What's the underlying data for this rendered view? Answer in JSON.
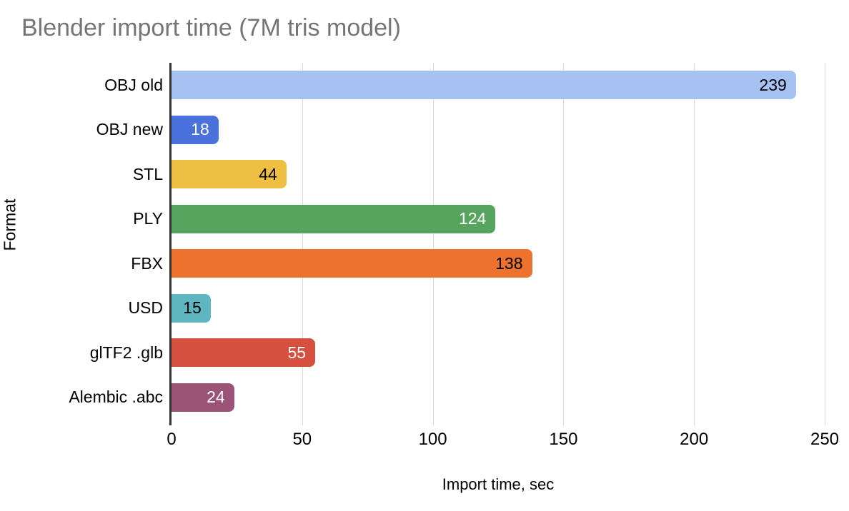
{
  "title": "Blender import time (7M tris model)",
  "chart_data": {
    "type": "bar",
    "orientation": "horizontal",
    "title": "Blender import time (7M tris model)",
    "categories": [
      "OBJ old",
      "OBJ new",
      "STL",
      "PLY",
      "FBX",
      "USD",
      "glTF2 .glb",
      "Alembic .abc"
    ],
    "values": [
      239,
      18,
      44,
      124,
      138,
      15,
      55,
      24
    ],
    "bar_colors": [
      "#a5c2f2",
      "#4b72dc",
      "#efbf44",
      "#57a45f",
      "#ed722e",
      "#5eb6c0",
      "#d5503f",
      "#9b5377"
    ],
    "value_label_colors": [
      "#000000",
      "#ffffff",
      "#000000",
      "#ffffff",
      "#000000",
      "#000000",
      "#ffffff",
      "#ffffff"
    ],
    "xlabel": "Import time, sec",
    "ylabel": "Format",
    "xlim": [
      0,
      250
    ],
    "xticks": [
      0,
      50,
      100,
      150,
      200,
      250
    ],
    "grid": true,
    "legend_position": "none"
  },
  "colors": {
    "background": "#ffffff",
    "title_text": "#757575",
    "axis_line": "#333333",
    "gridline": "#d9d9d9",
    "tick_text": "#000000"
  }
}
